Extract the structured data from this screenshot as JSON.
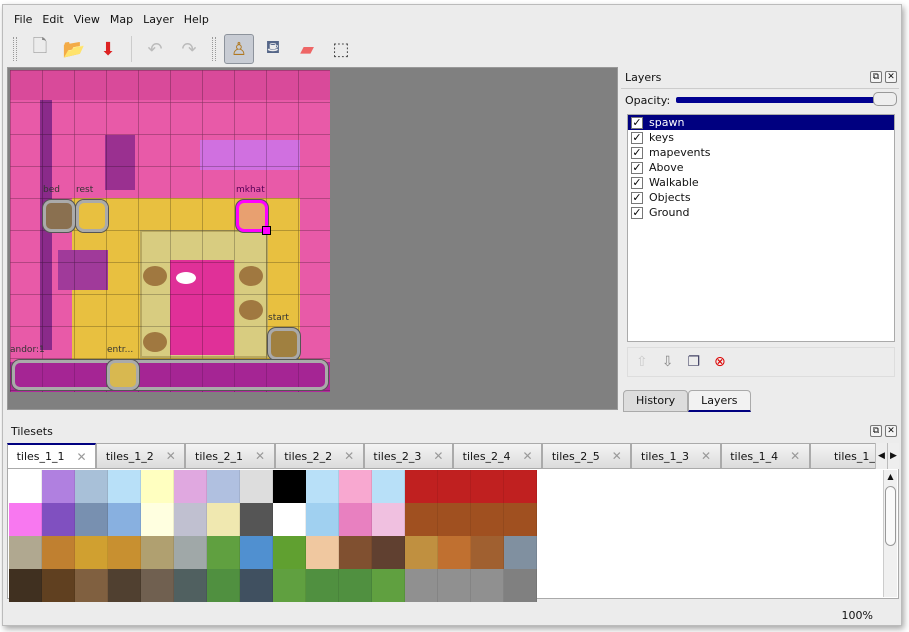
{
  "menu": [
    "File",
    "Edit",
    "View",
    "Map",
    "Layer",
    "Help"
  ],
  "toolbar": [
    {
      "name": "new-icon",
      "glyph": "🗋"
    },
    {
      "name": "open-icon",
      "glyph": "📂"
    },
    {
      "name": "save-icon",
      "glyph": "⬇"
    },
    {
      "name": "undo-icon",
      "glyph": "↶"
    },
    {
      "name": "redo-icon",
      "glyph": "↷"
    },
    {
      "name": "stamp-brush-icon",
      "glyph": "♙"
    },
    {
      "name": "bucket-fill-icon",
      "glyph": "⛾"
    },
    {
      "name": "eraser-icon",
      "glyph": "▰"
    },
    {
      "name": "rect-select-icon",
      "glyph": "⬚"
    }
  ],
  "map": {
    "objects": [
      "bed",
      "rest",
      "mkhat",
      "start",
      "andor:1",
      "entr..."
    ]
  },
  "layers_panel": {
    "title": "Layers",
    "opacity_label": "Opacity:",
    "opacity": 1.0,
    "layers": [
      {
        "name": "spawn",
        "visible": true,
        "selected": true
      },
      {
        "name": "keys",
        "visible": true
      },
      {
        "name": "mapevents",
        "visible": true
      },
      {
        "name": "Above",
        "visible": true
      },
      {
        "name": "Walkable",
        "visible": true
      },
      {
        "name": "Objects",
        "visible": true
      },
      {
        "name": "Ground",
        "visible": true
      }
    ],
    "tabs": [
      "History",
      "Layers"
    ],
    "active_tab": "Layers"
  },
  "tilesets_panel": {
    "title": "Tilesets",
    "tabs": [
      "tiles_1_1",
      "tiles_1_2",
      "tiles_2_1",
      "tiles_2_2",
      "tiles_2_3",
      "tiles_2_4",
      "tiles_2_5",
      "tiles_1_3",
      "tiles_1_4",
      "tiles_1_"
    ],
    "active_tab": "tiles_1_1"
  },
  "status": {
    "zoom": "100%"
  },
  "colors": {
    "selection": "#000080",
    "map_wall": "#e85aa8",
    "map_floor": "#e8c040"
  }
}
